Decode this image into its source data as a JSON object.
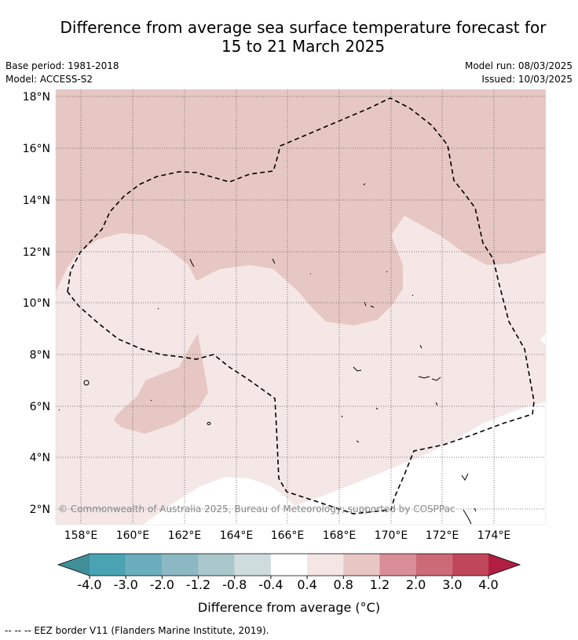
{
  "title": {
    "line1": "Difference from average sea surface temperature forecast for",
    "line2": "15 to 21 March 2025"
  },
  "meta": {
    "base_period": "Base period: 1981-2018",
    "model": "Model: ACCESS-S2",
    "model_run": "Model run: 08/03/2025",
    "issued": "Issued: 10/03/2025"
  },
  "map": {
    "lon_range": [
      157,
      176
    ],
    "lat_range": [
      1.4,
      18.3
    ],
    "lon_ticks": [
      "158°E",
      "160°E",
      "162°E",
      "164°E",
      "166°E",
      "168°E",
      "170°E",
      "172°E",
      "174°E"
    ],
    "lat_ticks": [
      "2°N",
      "4°N",
      "6°N",
      "8°N",
      "10°N",
      "12°N",
      "14°N",
      "16°N",
      "18°N"
    ],
    "copyright": "© Commonwealth of Australia 2025, Bureau of Meteorology; supported by COSPPac",
    "border_style": "dashed black"
  },
  "colorbar": {
    "ticks": [
      "-4.0",
      "-3.0",
      "-2.0",
      "-1.2",
      "-0.8",
      "-0.4",
      "0.4",
      "0.8",
      "1.2",
      "2.0",
      "3.0",
      "4.0"
    ],
    "colors": [
      "#3f8e98",
      "#4aa3b3",
      "#6aadbd",
      "#8cb8c4",
      "#aac8cb",
      "#cfdcdd",
      "#ffffff",
      "#f4e6e5",
      "#e8c6c3",
      "#d98d96",
      "#cc6a77",
      "#c0475a",
      "#b01e42"
    ],
    "label": "Difference from average (°C)"
  },
  "footer": {
    "legend_text": "--  --  -- EEZ border V11 (Flanders Marine Institute, 2019)."
  }
}
